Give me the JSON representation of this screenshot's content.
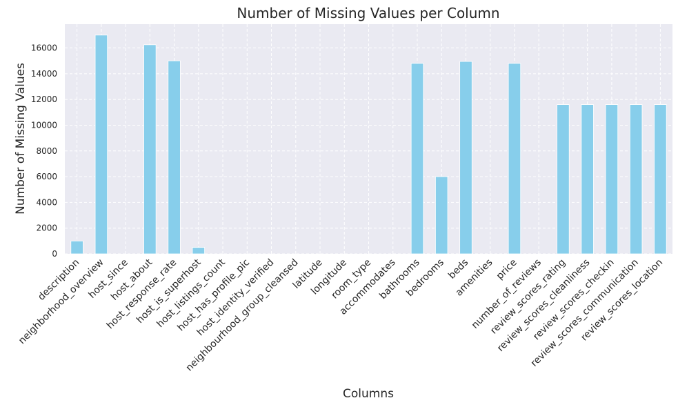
{
  "chart_data": {
    "type": "bar",
    "title": "Number of Missing Values per Column",
    "xlabel": "Columns",
    "ylabel": "Number of Missing Values",
    "categories": [
      "description",
      "neighborhood_overview",
      "host_since",
      "host_about",
      "host_response_rate",
      "host_is_superhost",
      "host_listings_count",
      "host_has_profile_pic",
      "host_identity_verified",
      "neighbourhood_group_cleansed",
      "latitude",
      "longitude",
      "room_type",
      "accommodates",
      "bathrooms",
      "bedrooms",
      "beds",
      "amenities",
      "price",
      "number_of_reviews",
      "review_scores_rating",
      "review_scores_cleanliness",
      "review_scores_checkin",
      "review_scores_communication",
      "review_scores_location"
    ],
    "values": [
      1000,
      17000,
      0,
      16250,
      15000,
      500,
      0,
      0,
      0,
      0,
      0,
      0,
      0,
      0,
      14800,
      6000,
      14950,
      0,
      14800,
      0,
      11600,
      11600,
      11600,
      11600,
      11600
    ],
    "ylim": [
      0,
      17850
    ],
    "yticks": [
      0,
      2000,
      4000,
      6000,
      8000,
      10000,
      12000,
      14000,
      16000
    ],
    "grid": true,
    "colors": {
      "bar": "#87ceeb",
      "plot_background": "#eaeaf2",
      "grid": "#ffffff",
      "text": "#262626"
    }
  }
}
